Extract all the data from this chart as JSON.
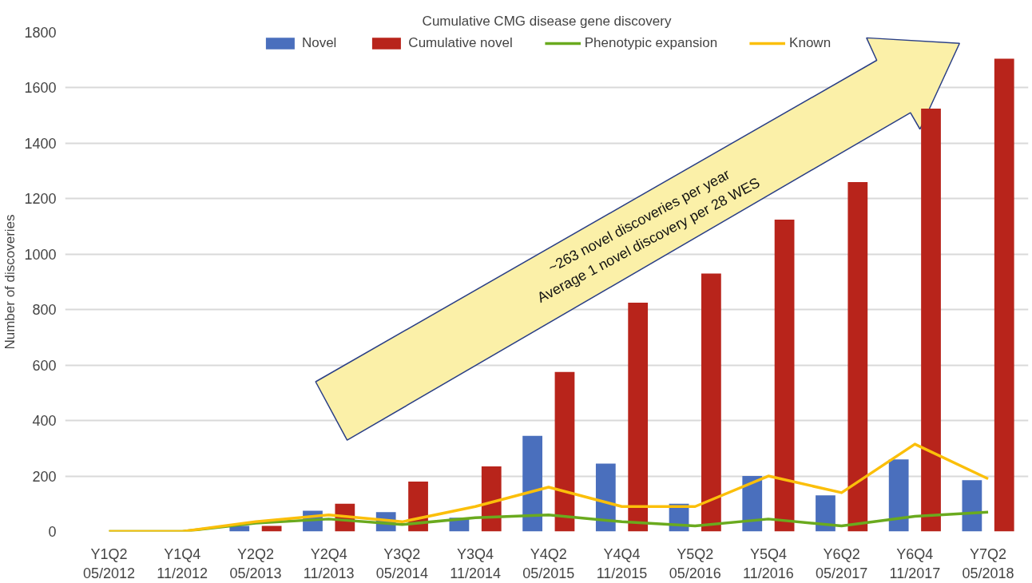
{
  "chart_data": {
    "type": "bar",
    "title": "Cumulative CMG disease gene discovery",
    "ylabel": "Number of discoveries",
    "categories": [
      "Y1Q2\n05/2012",
      "Y1Q4\n11/2012",
      "Y2Q2\n05/2013",
      "Y2Q4\n11/2013",
      "Y3Q2\n05/2014",
      "Y3Q4\n11/2014",
      "Y4Q2\n05/2015",
      "Y4Q4\n11/2015",
      "Y5Q2\n05/2016",
      "Y5Q4\n11/2016",
      "Y6Q2\n05/2017",
      "Y6Q4\n11/2017",
      "Y7Q2\n05/2018"
    ],
    "series": [
      {
        "name": "Novel",
        "color": "#4a6fbd",
        "values": [
          0,
          0,
          20,
          75,
          70,
          50,
          345,
          245,
          100,
          200,
          130,
          260,
          185
        ]
      },
      {
        "name": "Cumulative novel",
        "color": "#b8241b",
        "values": [
          0,
          0,
          20,
          100,
          180,
          235,
          575,
          825,
          930,
          1125,
          1260,
          1525,
          1705
        ]
      },
      {
        "name": "Phenotypic expansion",
        "color": "#6aaa1e",
        "type": "line",
        "values": [
          0,
          0,
          30,
          45,
          25,
          50,
          60,
          35,
          20,
          45,
          20,
          55,
          70
        ]
      },
      {
        "name": "Known",
        "color": "#fbbf0a",
        "type": "line",
        "values": [
          0,
          0,
          35,
          60,
          35,
          90,
          160,
          90,
          90,
          200,
          140,
          315,
          190
        ]
      }
    ],
    "annotations": [
      "~263 novel discoveries per year",
      "Average 1 novel discovery per 28 WES"
    ],
    "ylim": [
      0,
      1800
    ],
    "yticks": [
      0,
      200,
      400,
      600,
      800,
      1000,
      1200,
      1400,
      1600,
      1800
    ],
    "grid": "y",
    "legend": "top",
    "marker": "none",
    "line_style": "solid"
  }
}
